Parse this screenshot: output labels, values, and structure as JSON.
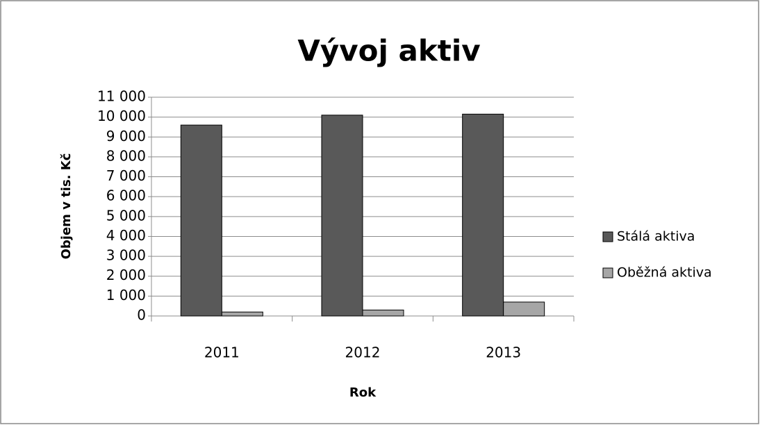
{
  "chart_data": {
    "type": "bar",
    "title": "Vývoj aktiv",
    "y_label": "Objem v tis. Kč",
    "x_label": "Rok",
    "categories": [
      "2011",
      "2012",
      "2013"
    ],
    "series": [
      {
        "name": "Stálá aktiva",
        "color": "#595959",
        "values": [
          9600,
          10100,
          10150
        ]
      },
      {
        "name": "Oběžná aktiva",
        "color": "#a6a6a6",
        "values": [
          200,
          300,
          700
        ]
      }
    ],
    "ylim": [
      0,
      11000
    ],
    "yticks": [
      0,
      {
        "value": 1000,
        "label": "1 000"
      },
      {
        "value": 2000,
        "label": "2 000"
      },
      {
        "value": 3000,
        "label": "3 000"
      },
      {
        "value": 4000,
        "label": "4 000"
      },
      {
        "value": 5000,
        "label": "5 000"
      },
      {
        "value": 6000,
        "label": "6 000"
      },
      {
        "value": 7000,
        "label": "7 000"
      },
      {
        "value": 8000,
        "label": "8 000"
      },
      {
        "value": 9000,
        "label": "9 000"
      },
      {
        "value": 10000,
        "label": "10 000"
      },
      {
        "value": 11000,
        "label": "11 000"
      }
    ],
    "grid": true,
    "legend": "right"
  }
}
